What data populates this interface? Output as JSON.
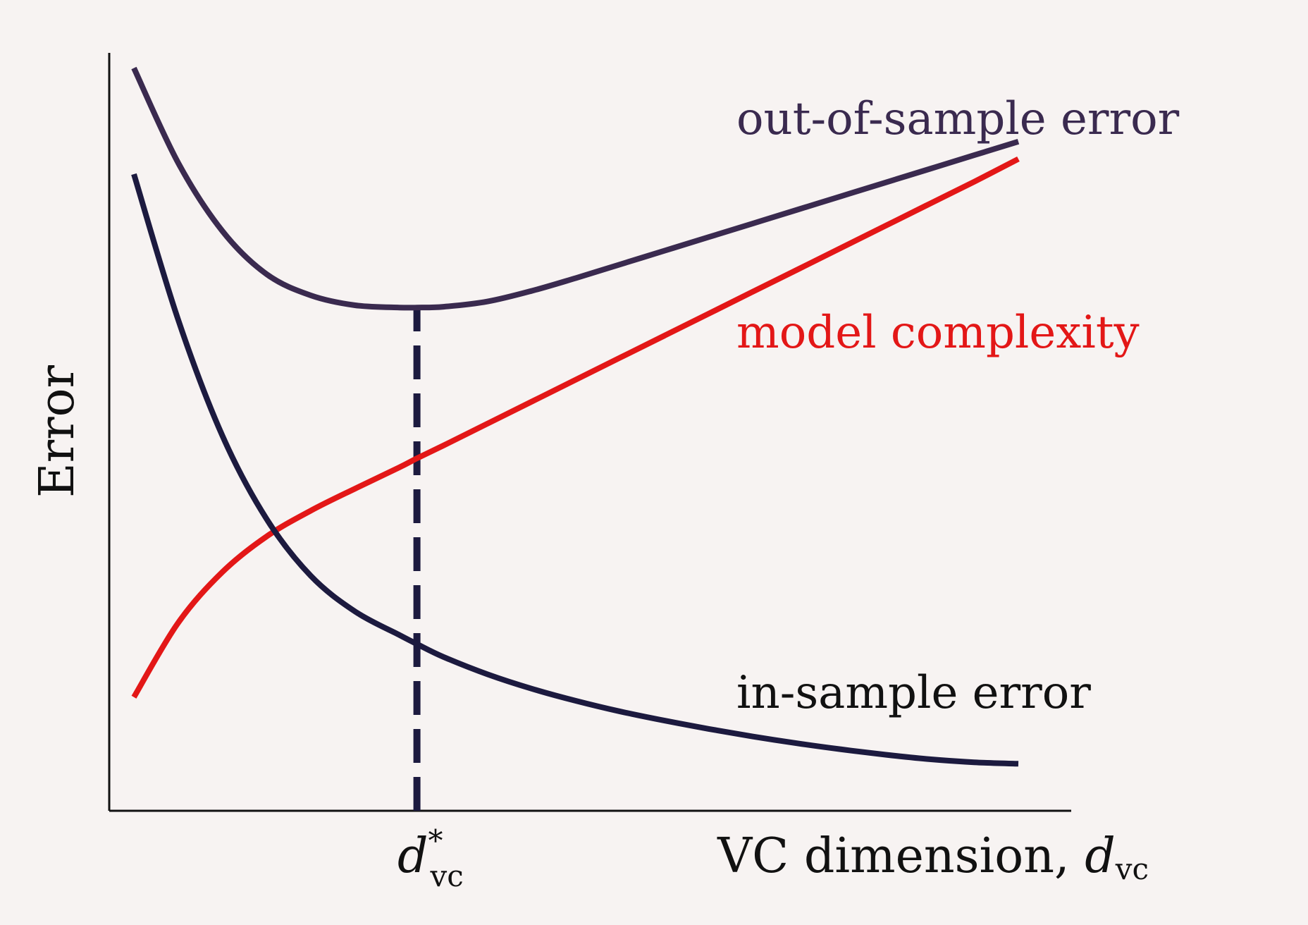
{
  "chart_data": {
    "type": "line",
    "title": "",
    "xlabel": {
      "prefix": "VC dimension, ",
      "var": "d",
      "sub": "vc"
    },
    "ylabel": "Error",
    "ylim": [
      0,
      1
    ],
    "xlim": [
      0,
      10
    ],
    "grid": false,
    "legend": "inline-labels",
    "marker": {
      "x": 3.2,
      "label_var": "d",
      "label_sup": "*",
      "label_sub": "vc"
    },
    "series": [
      {
        "name": "out-of-sample error",
        "color": "#3a2a4f",
        "x": [
          0.0,
          0.5,
          1.0,
          1.5,
          2.0,
          2.5,
          3.0,
          3.2,
          3.5,
          4.0,
          4.5,
          5.0,
          5.5,
          6.0,
          6.5,
          7.0,
          7.5,
          8.0,
          8.5,
          9.0,
          9.5,
          10.0
        ],
        "y": [
          0.98,
          0.855,
          0.765,
          0.708,
          0.68,
          0.667,
          0.664,
          0.664,
          0.665,
          0.672,
          0.686,
          0.703,
          0.721,
          0.739,
          0.757,
          0.775,
          0.793,
          0.811,
          0.829,
          0.847,
          0.865,
          0.883
        ]
      },
      {
        "name": "model complexity",
        "color": "#e31717",
        "x": [
          0.0,
          0.5,
          1.0,
          1.5,
          2.0,
          2.5,
          3.0,
          3.2,
          3.5,
          4.0,
          4.5,
          5.0,
          5.5,
          6.0,
          6.5,
          7.0,
          7.5,
          8.0,
          8.5,
          9.0,
          9.5,
          10.0
        ],
        "y": [
          0.15,
          0.248,
          0.315,
          0.362,
          0.396,
          0.425,
          0.453,
          0.465,
          0.482,
          0.511,
          0.54,
          0.569,
          0.598,
          0.627,
          0.656,
          0.685,
          0.714,
          0.743,
          0.772,
          0.801,
          0.83,
          0.86
        ]
      },
      {
        "name": "in-sample error",
        "color": "#1c1a3f",
        "x": [
          0.0,
          0.5,
          1.0,
          1.5,
          2.0,
          2.5,
          3.0,
          3.2,
          3.5,
          4.0,
          4.5,
          5.0,
          5.5,
          6.0,
          6.5,
          7.0,
          7.5,
          8.0,
          8.5,
          9.0,
          9.5,
          10.0
        ],
        "y": [
          0.84,
          0.648,
          0.495,
          0.385,
          0.31,
          0.263,
          0.232,
          0.22,
          0.203,
          0.18,
          0.161,
          0.145,
          0.131,
          0.119,
          0.108,
          0.098,
          0.089,
          0.081,
          0.074,
          0.068,
          0.064,
          0.062
        ]
      }
    ]
  }
}
